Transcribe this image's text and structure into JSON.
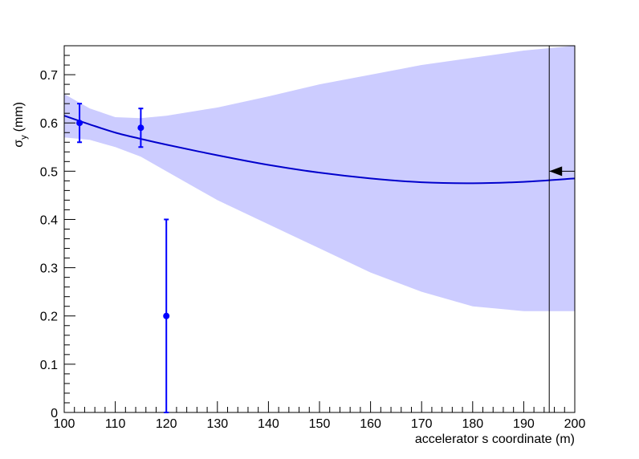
{
  "chart_data": {
    "type": "scatter",
    "x_label": "accelerator s coordinate (m)",
    "y_label": "σ",
    "y_label_sub": "y",
    "y_label_unit": "(mm)",
    "xlim": [
      100,
      200
    ],
    "ylim": [
      0,
      0.76
    ],
    "xticks": [
      100,
      110,
      120,
      130,
      140,
      150,
      160,
      170,
      180,
      190,
      200
    ],
    "yticks": [
      0,
      0.1,
      0.2,
      0.3,
      0.4,
      0.5,
      0.6,
      0.7
    ],
    "points": {
      "color": "#0000ff",
      "x": [
        103,
        115,
        120
      ],
      "values": [
        0.6,
        0.59,
        0.2
      ],
      "errors": [
        0.04,
        0.04,
        0.2
      ]
    },
    "fit": {
      "color": "#0000cc",
      "band_color": "#ccccff",
      "x": [
        100,
        105,
        110,
        115,
        120,
        130,
        140,
        150,
        160,
        170,
        180,
        190,
        200
      ],
      "values": [
        0.615,
        0.597,
        0.58,
        0.567,
        0.555,
        0.533,
        0.513,
        0.497,
        0.485,
        0.477,
        0.475,
        0.478,
        0.485
      ],
      "upper": [
        0.66,
        0.63,
        0.612,
        0.61,
        0.615,
        0.632,
        0.655,
        0.68,
        0.7,
        0.72,
        0.735,
        0.75,
        0.76
      ],
      "lower": [
        0.57,
        0.565,
        0.55,
        0.53,
        0.5,
        0.44,
        0.39,
        0.34,
        0.29,
        0.25,
        0.22,
        0.21,
        0.21
      ]
    },
    "marker_x": 195,
    "arrow": {
      "x": [
        200,
        195
      ],
      "y": 0.5
    }
  }
}
